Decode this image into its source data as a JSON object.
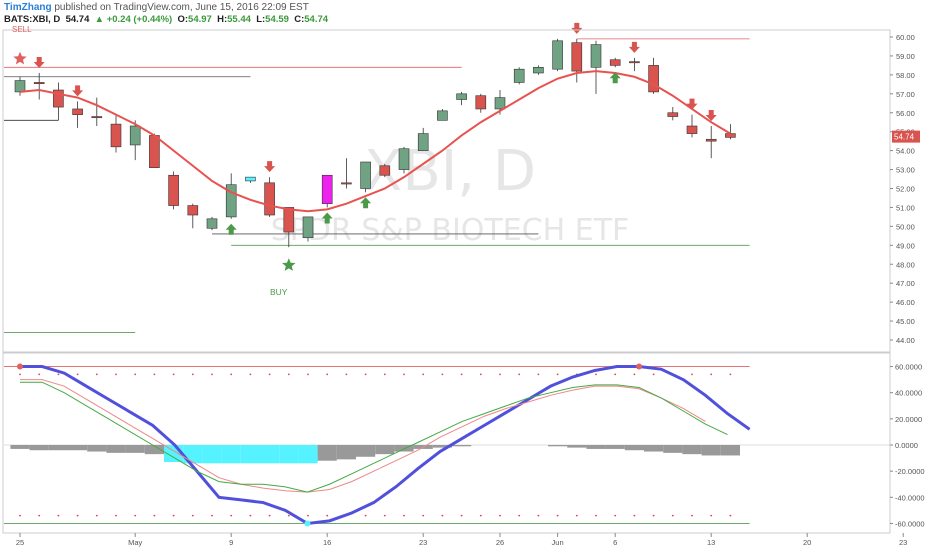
{
  "header": {
    "author": "TimZhang",
    "published": "published on TradingView.com, June 15, 2016 22:09 EST",
    "symbol": "BATS:XBI, D",
    "last": "54.74",
    "change": "+0.24 (+0.44%)",
    "o_label": "O:",
    "o_val": "54.97",
    "h_label": "H:",
    "h_val": "55.44",
    "l_label": "L:",
    "l_val": "54.59",
    "c_label": "C:",
    "c_val": "54.74"
  },
  "watermark": {
    "ticker": "XBI, D",
    "name": "SPDR S&P BIOTECH ETF"
  },
  "annotations": {
    "sell": "SELL",
    "buy": "BUY"
  },
  "colors": {
    "up": "#6fa383",
    "down": "#d9534f",
    "ma": "#e8524f",
    "cyan": "#55f3ff",
    "magenta": "#ee22ee",
    "blue": "#5050dd",
    "hist": "#999999",
    "axis": "#555555"
  },
  "chart_data": [
    {
      "type": "candlestick",
      "title": "",
      "price_axis": {
        "min": 44,
        "max": 60,
        "ticks": [
          "60.00",
          "59.00",
          "58.00",
          "57.00",
          "56.00",
          "55.00",
          "54.00",
          "53.00",
          "52.00",
          "51.00",
          "50.00",
          "49.00",
          "48.00",
          "47.00",
          "46.00",
          "45.00",
          "44.00"
        ]
      },
      "last_price_label": "54.74",
      "x_ticks": [
        {
          "i": 0,
          "label": "25"
        },
        {
          "i": 6,
          "label": "May"
        },
        {
          "i": 11,
          "label": "9"
        },
        {
          "i": 16,
          "label": "16"
        },
        {
          "i": 21,
          "label": "23"
        },
        {
          "i": 25,
          "label": "26"
        },
        {
          "i": 28,
          "label": "Jun"
        },
        {
          "i": 31,
          "label": "6"
        },
        {
          "i": 36,
          "label": "13"
        },
        {
          "i": 41,
          "label": "20"
        },
        {
          "i": 46,
          "label": "23"
        }
      ],
      "candles": [
        {
          "o": 57.1,
          "h": 57.9,
          "l": 56.9,
          "c": 57.7,
          "color": "up"
        },
        {
          "o": 57.6,
          "h": 58.1,
          "l": 56.7,
          "c": 57.6,
          "color": "down"
        },
        {
          "o": 57.2,
          "h": 57.6,
          "l": 55.6,
          "c": 56.3,
          "color": "down"
        },
        {
          "o": 56.2,
          "h": 56.6,
          "l": 55.2,
          "c": 55.9,
          "color": "down"
        },
        {
          "o": 55.8,
          "h": 56.8,
          "l": 55.3,
          "c": 55.8,
          "color": "down"
        },
        {
          "o": 55.4,
          "h": 55.9,
          "l": 53.9,
          "c": 54.2,
          "color": "down"
        },
        {
          "o": 54.3,
          "h": 55.6,
          "l": 53.5,
          "c": 55.3,
          "color": "up"
        },
        {
          "o": 54.8,
          "h": 54.9,
          "l": 53.1,
          "c": 53.1,
          "color": "down"
        },
        {
          "o": 52.7,
          "h": 52.9,
          "l": 50.9,
          "c": 51.1,
          "color": "down"
        },
        {
          "o": 51.1,
          "h": 51.2,
          "l": 49.9,
          "c": 50.6,
          "color": "down"
        },
        {
          "o": 49.9,
          "h": 50.5,
          "l": 49.8,
          "c": 50.4,
          "color": "up"
        },
        {
          "o": 50.5,
          "h": 52.8,
          "l": 50.4,
          "c": 52.2,
          "color": "up"
        },
        {
          "o": 52.4,
          "h": 52.6,
          "l": 52.3,
          "c": 52.6,
          "color": "cyan"
        },
        {
          "o": 52.3,
          "h": 52.6,
          "l": 50.5,
          "c": 50.6,
          "color": "down"
        },
        {
          "o": 51.0,
          "h": 51.0,
          "l": 48.9,
          "c": 49.7,
          "color": "down"
        },
        {
          "o": 49.4,
          "h": 50.5,
          "l": 49.2,
          "c": 50.5,
          "color": "up"
        },
        {
          "o": 51.2,
          "h": 52.7,
          "l": 51.0,
          "c": 52.7,
          "color": "magenta"
        },
        {
          "o": 52.3,
          "h": 53.6,
          "l": 52.0,
          "c": 52.3,
          "color": "down"
        },
        {
          "o": 52.0,
          "h": 53.4,
          "l": 51.8,
          "c": 53.4,
          "color": "up"
        },
        {
          "o": 53.2,
          "h": 53.3,
          "l": 52.6,
          "c": 52.7,
          "color": "down"
        },
        {
          "o": 53.0,
          "h": 54.2,
          "l": 52.8,
          "c": 54.1,
          "color": "up"
        },
        {
          "o": 54.0,
          "h": 55.2,
          "l": 54.0,
          "c": 54.9,
          "color": "up"
        },
        {
          "o": 55.6,
          "h": 56.2,
          "l": 55.6,
          "c": 56.1,
          "color": "up"
        },
        {
          "o": 56.7,
          "h": 57.1,
          "l": 56.4,
          "c": 57.0,
          "color": "up"
        },
        {
          "o": 56.2,
          "h": 57.0,
          "l": 56.0,
          "c": 56.9,
          "color": "down"
        },
        {
          "o": 56.2,
          "h": 57.2,
          "l": 55.9,
          "c": 56.8,
          "color": "up"
        },
        {
          "o": 57.6,
          "h": 58.4,
          "l": 57.5,
          "c": 58.3,
          "color": "up"
        },
        {
          "o": 58.1,
          "h": 58.5,
          "l": 58.0,
          "c": 58.4,
          "color": "up"
        },
        {
          "o": 58.3,
          "h": 59.9,
          "l": 58.2,
          "c": 59.8,
          "color": "up"
        },
        {
          "o": 59.7,
          "h": 59.9,
          "l": 57.6,
          "c": 58.2,
          "color": "down"
        },
        {
          "o": 58.4,
          "h": 59.8,
          "l": 57.0,
          "c": 59.6,
          "color": "up"
        },
        {
          "o": 58.8,
          "h": 58.9,
          "l": 58.4,
          "c": 58.5,
          "color": "down"
        },
        {
          "o": 58.7,
          "h": 58.9,
          "l": 58.2,
          "c": 58.7,
          "color": "down"
        },
        {
          "o": 58.5,
          "h": 58.9,
          "l": 57.0,
          "c": 57.1,
          "color": "down"
        },
        {
          "o": 56.0,
          "h": 56.3,
          "l": 55.6,
          "c": 55.8,
          "color": "down"
        },
        {
          "o": 55.3,
          "h": 55.9,
          "l": 54.7,
          "c": 54.9,
          "color": "down"
        },
        {
          "o": 54.5,
          "h": 55.3,
          "l": 53.6,
          "c": 54.6,
          "color": "down"
        },
        {
          "o": 54.9,
          "h": 55.4,
          "l": 54.6,
          "c": 54.7,
          "color": "down"
        }
      ],
      "moving_average": [
        57.1,
        57.2,
        57.0,
        56.8,
        56.4,
        55.9,
        55.4,
        54.8,
        54.0,
        53.2,
        52.4,
        51.8,
        51.4,
        51.1,
        50.9,
        50.8,
        50.9,
        51.2,
        51.6,
        52.0,
        52.6,
        53.3,
        54.0,
        54.8,
        55.5,
        56.1,
        56.7,
        57.3,
        57.8,
        58.1,
        58.2,
        58.1,
        57.9,
        57.5,
        56.9,
        56.2,
        55.5,
        54.9
      ],
      "levels": [
        {
          "y": 58.4,
          "from": 0,
          "to": 23,
          "color": "#e06060"
        },
        {
          "y": 57.9,
          "from": 0,
          "to": 12,
          "color": "#555555"
        },
        {
          "y": 55.6,
          "from": 0,
          "to": 2,
          "color": "#333333"
        },
        {
          "y": 59.9,
          "from": 29,
          "to": 38,
          "color": "#e06060"
        },
        {
          "y": 49.0,
          "from": 11,
          "to": 38,
          "color": "#5a9a5a"
        },
        {
          "y": 49.6,
          "from": 10,
          "to": 27,
          "color": "#555555"
        },
        {
          "y": 44.4,
          "from": 0,
          "to": 6,
          "color": "#5a9a5a"
        }
      ],
      "sell_arrows": [
        1,
        3,
        13,
        29,
        32,
        35,
        36
      ],
      "buy_arrows": [
        11,
        16,
        18,
        31
      ],
      "sell_star": 0,
      "buy_star": 14
    },
    {
      "type": "line",
      "title": "",
      "osc_axis": {
        "min": -65,
        "max": 65,
        "ticks": [
          "60.0000",
          "40.0000",
          "20.0000",
          "0.0000",
          "-20.0000",
          "-40.0000",
          "-60.0000"
        ]
      },
      "hist": [
        -3,
        -4,
        -4,
        -4,
        -5,
        -6,
        -6,
        -7,
        -13,
        -14,
        -14,
        -14,
        -14,
        -14,
        -14,
        -14,
        -12,
        -11,
        -9,
        -7,
        -5,
        -3,
        -2,
        -1,
        0,
        0,
        0,
        0,
        -1,
        -2,
        -3,
        -3,
        -4,
        -5,
        -6,
        -7,
        -8,
        -8
      ],
      "hist_cyan_range": [
        8,
        15
      ],
      "series": [
        {
          "color": "blue",
          "values": [
            60,
            60,
            55,
            45,
            35,
            25,
            15,
            0,
            -20,
            -40,
            -42,
            -44,
            -50,
            -60,
            -58,
            -52,
            -44,
            -32,
            -18,
            -5,
            5,
            15,
            25,
            35,
            45,
            52,
            57,
            60,
            60,
            58,
            50,
            38,
            24,
            12
          ]
        },
        {
          "color": "#e88",
          "values": [
            50,
            50,
            45,
            35,
            25,
            15,
            5,
            -5,
            -15,
            -25,
            -30,
            -33,
            -35,
            -36,
            -34,
            -28,
            -20,
            -12,
            -4,
            6,
            14,
            22,
            28,
            33,
            38,
            42,
            45,
            45,
            43,
            36,
            28,
            18
          ]
        },
        {
          "color": "#4a4",
          "values": [
            48,
            48,
            40,
            30,
            20,
            10,
            0,
            -10,
            -20,
            -28,
            -30,
            -30,
            -32,
            -36,
            -30,
            -22,
            -14,
            -6,
            2,
            10,
            18,
            24,
            30,
            36,
            40,
            44,
            46,
            46,
            44,
            36,
            26,
            16,
            8
          ]
        }
      ],
      "ref_lines": [
        {
          "y": 60,
          "color": "#e06060"
        },
        {
          "y": -60,
          "color": "#5a9a5a"
        }
      ],
      "dots_top": 54,
      "dots_bottom": -54
    }
  ]
}
